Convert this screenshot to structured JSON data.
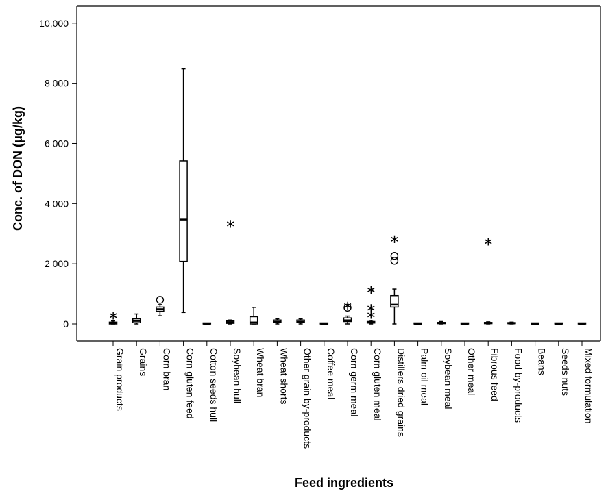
{
  "chart_data": {
    "type": "boxplot",
    "title": "",
    "xlabel": "Feed ingredients",
    "ylabel": "Conc. of DON (μg/kg)",
    "ylim": [
      -600,
      10500
    ],
    "yticks": [
      {
        "value": 0,
        "label": "0"
      },
      {
        "value": 2000,
        "label": "2 000"
      },
      {
        "value": 4000,
        "label": "4 000"
      },
      {
        "value": 6000,
        "label": "6 000"
      },
      {
        "value": 8000,
        "label": "8 000"
      },
      {
        "value": 10000,
        "label": "10,000"
      }
    ],
    "grid": false,
    "categories": [
      "Grain products",
      "Grains",
      "Corn bran",
      "Corn gluten feed",
      "Cotton seeds hull",
      "Soybean hull",
      "Wheat bran",
      "Wheat shorts",
      "Other grain by-products",
      "Coffee meal",
      "Corn germ meal",
      "Corn gluten meal",
      "Distillers dried grains",
      "Palm oil meal",
      "Soybean meal",
      "Other meal",
      "Fibrous feed",
      "Food by-products",
      "Beans",
      "Seeds nuts",
      "Mixed formulation"
    ],
    "boxes": [
      {
        "min": 0,
        "q1": 0,
        "median": 20,
        "q3": 60,
        "max": 100,
        "outliers": [],
        "extremes": [
          330
        ]
      },
      {
        "min": 0,
        "q1": 40,
        "median": 100,
        "q3": 170,
        "max": 330,
        "outliers": [],
        "extremes": []
      },
      {
        "min": 270,
        "q1": 420,
        "median": 490,
        "q3": 560,
        "max": 640,
        "outliers": [
          800
        ],
        "extremes": []
      },
      {
        "min": 380,
        "q1": 2080,
        "median": 3470,
        "q3": 5420,
        "max": 8480,
        "outliers": [],
        "extremes": []
      },
      {
        "min": 0,
        "q1": 0,
        "median": 0,
        "q3": 0,
        "max": 0,
        "outliers": [],
        "extremes": []
      },
      {
        "min": 0,
        "q1": 20,
        "median": 60,
        "q3": 100,
        "max": 130,
        "outliers": [],
        "extremes": [
          3380
        ]
      },
      {
        "min": 0,
        "q1": 0,
        "median": 50,
        "q3": 240,
        "max": 550,
        "outliers": [],
        "extremes": []
      },
      {
        "min": 0,
        "q1": 40,
        "median": 80,
        "q3": 130,
        "max": 170,
        "outliers": [],
        "extremes": []
      },
      {
        "min": 0,
        "q1": 40,
        "median": 80,
        "q3": 130,
        "max": 170,
        "outliers": [],
        "extremes": []
      },
      {
        "min": 0,
        "q1": 0,
        "median": 0,
        "q3": 0,
        "max": 0,
        "outliers": [],
        "extremes": []
      },
      {
        "min": 0,
        "q1": 80,
        "median": 120,
        "q3": 200,
        "max": 260,
        "outliers": [
          540
        ],
        "extremes": [
          660
        ]
      },
      {
        "min": 0,
        "q1": 30,
        "median": 50,
        "q3": 80,
        "max": 120,
        "outliers": [],
        "extremes": [
          350,
          580,
          1180
        ]
      },
      {
        "min": 0,
        "q1": 560,
        "median": 640,
        "q3": 940,
        "max": 1160,
        "outliers": [
          2100,
          2260
        ],
        "extremes": [
          2870
        ]
      },
      {
        "min": 0,
        "q1": 0,
        "median": 0,
        "q3": 0,
        "max": 0,
        "outliers": [],
        "extremes": []
      },
      {
        "min": 0,
        "q1": 10,
        "median": 30,
        "q3": 50,
        "max": 80,
        "outliers": [],
        "extremes": []
      },
      {
        "min": 0,
        "q1": 0,
        "median": 0,
        "q3": 0,
        "max": 0,
        "outliers": [],
        "extremes": []
      },
      {
        "min": 0,
        "q1": 10,
        "median": 30,
        "q3": 50,
        "max": 70,
        "outliers": [],
        "extremes": [
          2790
        ]
      },
      {
        "min": 0,
        "q1": 10,
        "median": 20,
        "q3": 40,
        "max": 60,
        "outliers": [],
        "extremes": []
      },
      {
        "min": 0,
        "q1": 0,
        "median": 0,
        "q3": 0,
        "max": 0,
        "outliers": [],
        "extremes": []
      },
      {
        "min": 0,
        "q1": 0,
        "median": 0,
        "q3": 0,
        "max": 0,
        "outliers": [],
        "extremes": []
      },
      {
        "min": 0,
        "q1": 0,
        "median": 0,
        "q3": 0,
        "max": 0,
        "outliers": [],
        "extremes": []
      }
    ],
    "colors": {
      "box_fill": "#ffffff",
      "stroke": "#000000",
      "background": "#ffffff"
    }
  }
}
